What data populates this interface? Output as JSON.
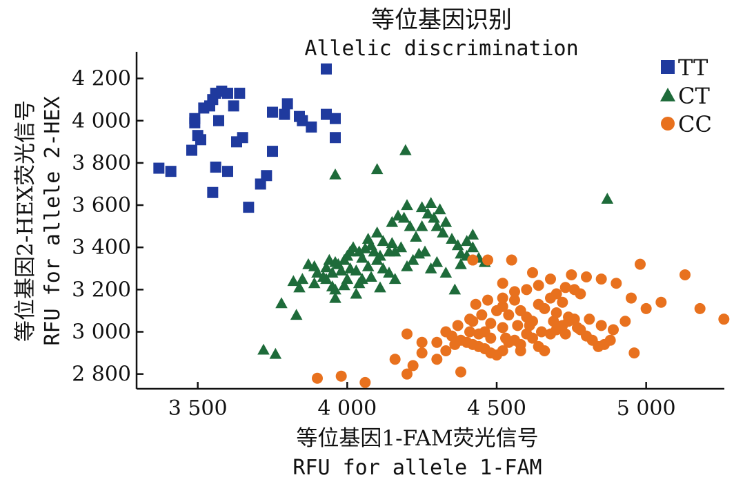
{
  "chart_data": {
    "type": "scatter",
    "title": "等位基因识别",
    "subtitle": "Allelic discrimination",
    "xlabel": "等位基因1-FAM荧光信号",
    "xlabel_en": "RFU for allele 1-FAM",
    "ylabel": "等位基因2-HEX荧光信号",
    "ylabel_en": "RFU for allele 2-HEX",
    "xlim": [
      3300,
      5250
    ],
    "ylim": [
      2740,
      4310
    ],
    "x_ticks": [
      3500,
      4000,
      4500,
      5000
    ],
    "x_tick_labels": [
      "3 500",
      "4 000",
      "4 500",
      "5 000"
    ],
    "y_ticks": [
      2800,
      3000,
      3200,
      3400,
      3600,
      3800,
      4000,
      4200
    ],
    "y_tick_labels": [
      "2 800",
      "3 000",
      "3 200",
      "3 400",
      "3 600",
      "3 800",
      "4 000",
      "4 200"
    ],
    "grid": false,
    "legend_position": "top-right",
    "series": [
      {
        "name": "TT",
        "marker": "square",
        "color": "#1f3a9e",
        "points": [
          [
            3930,
            4245
          ],
          [
            3370,
            3775
          ],
          [
            3410,
            3760
          ],
          [
            3480,
            3860
          ],
          [
            3490,
            3990
          ],
          [
            3490,
            4010
          ],
          [
            3500,
            3930
          ],
          [
            3510,
            3910
          ],
          [
            3520,
            4060
          ],
          [
            3540,
            4070
          ],
          [
            3550,
            4100
          ],
          [
            3560,
            4130
          ],
          [
            3580,
            4140
          ],
          [
            3600,
            4130
          ],
          [
            3620,
            4070
          ],
          [
            3640,
            4130
          ],
          [
            3570,
            4000
          ],
          [
            3560,
            3780
          ],
          [
            3600,
            3760
          ],
          [
            3630,
            3900
          ],
          [
            3650,
            3920
          ],
          [
            3550,
            3660
          ],
          [
            3710,
            3700
          ],
          [
            3730,
            3740
          ],
          [
            3750,
            3855
          ],
          [
            3750,
            4040
          ],
          [
            3790,
            4030
          ],
          [
            3800,
            4080
          ],
          [
            3840,
            4020
          ],
          [
            3850,
            4000
          ],
          [
            3880,
            3970
          ],
          [
            3930,
            4030
          ],
          [
            3960,
            4010
          ],
          [
            3960,
            3920
          ],
          [
            3670,
            3590
          ]
        ]
      },
      {
        "name": "CT",
        "marker": "triangle",
        "color": "#1e6b3a",
        "points": [
          [
            4195,
            3860
          ],
          [
            4100,
            3770
          ],
          [
            3960,
            3745
          ],
          [
            4870,
            3630
          ],
          [
            3720,
            2915
          ],
          [
            3760,
            2895
          ],
          [
            3780,
            3135
          ],
          [
            3830,
            3080
          ],
          [
            3840,
            3210
          ],
          [
            3890,
            3230
          ],
          [
            3920,
            3260
          ],
          [
            3950,
            3215
          ],
          [
            3960,
            3160
          ],
          [
            3890,
            3310
          ],
          [
            3930,
            3305
          ],
          [
            3950,
            3280
          ],
          [
            3970,
            3320
          ],
          [
            3990,
            3340
          ],
          [
            4000,
            3360
          ],
          [
            4010,
            3300
          ],
          [
            4030,
            3290
          ],
          [
            4050,
            3350
          ],
          [
            4060,
            3395
          ],
          [
            4080,
            3410
          ],
          [
            4020,
            3400
          ],
          [
            4040,
            3380
          ],
          [
            4070,
            3440
          ],
          [
            4100,
            3470
          ],
          [
            4120,
            3430
          ],
          [
            4140,
            3380
          ],
          [
            4150,
            3420
          ],
          [
            4160,
            3380
          ],
          [
            4180,
            3400
          ],
          [
            4150,
            3520
          ],
          [
            4170,
            3550
          ],
          [
            4190,
            3540
          ],
          [
            4210,
            3500
          ],
          [
            4230,
            3450
          ],
          [
            4250,
            3500
          ],
          [
            4270,
            3560
          ],
          [
            4290,
            3540
          ],
          [
            4310,
            3580
          ],
          [
            4330,
            3520
          ],
          [
            4200,
            3600
          ],
          [
            4250,
            3590
          ],
          [
            4280,
            3610
          ],
          [
            4300,
            3500
          ],
          [
            4320,
            3470
          ],
          [
            4350,
            3440
          ],
          [
            4370,
            3410
          ],
          [
            4400,
            3360
          ],
          [
            4420,
            3400
          ],
          [
            4440,
            3350
          ],
          [
            4460,
            3330
          ],
          [
            4100,
            3340
          ],
          [
            4120,
            3300
          ],
          [
            4080,
            3260
          ],
          [
            4040,
            3230
          ],
          [
            3990,
            3220
          ],
          [
            3960,
            3200
          ],
          [
            3930,
            3250
          ],
          [
            3900,
            3280
          ],
          [
            3870,
            3320
          ],
          [
            3850,
            3250
          ],
          [
            3820,
            3240
          ],
          [
            4110,
            3210
          ],
          [
            4140,
            3280
          ],
          [
            4160,
            3250
          ],
          [
            4200,
            3310
          ],
          [
            4220,
            3340
          ],
          [
            4240,
            3370
          ],
          [
            4260,
            3380
          ],
          [
            4280,
            3300
          ],
          [
            4300,
            3330
          ],
          [
            4330,
            3280
          ],
          [
            4360,
            3200
          ],
          [
            4380,
            3320
          ],
          [
            4400,
            3430
          ],
          [
            4420,
            3460
          ],
          [
            4380,
            3370
          ],
          [
            4070,
            3310
          ],
          [
            4050,
            3250
          ],
          [
            4030,
            3180
          ],
          [
            4000,
            3250
          ],
          [
            3980,
            3290
          ],
          [
            3960,
            3330
          ],
          [
            3940,
            3340
          ],
          [
            4010,
            3380
          ],
          [
            4090,
            3380
          ],
          [
            4110,
            3360
          ]
        ]
      },
      {
        "name": "CC",
        "marker": "circle",
        "color": "#e8711e",
        "points": [
          [
            4060,
            2760
          ],
          [
            3980,
            2790
          ],
          [
            3900,
            2780
          ],
          [
            4200,
            2800
          ],
          [
            4250,
            2900
          ],
          [
            4160,
            2870
          ],
          [
            4220,
            2840
          ],
          [
            4300,
            2950
          ],
          [
            4330,
            2910
          ],
          [
            4360,
            2940
          ],
          [
            4380,
            2960
          ],
          [
            4400,
            2950
          ],
          [
            4420,
            2940
          ],
          [
            4440,
            2930
          ],
          [
            4460,
            2920
          ],
          [
            4480,
            2900
          ],
          [
            4500,
            2890
          ],
          [
            4520,
            2910
          ],
          [
            4540,
            2950
          ],
          [
            4560,
            2960
          ],
          [
            4580,
            2940
          ],
          [
            4600,
            2990
          ],
          [
            4620,
            2970
          ],
          [
            4640,
            2930
          ],
          [
            4660,
            2910
          ],
          [
            4680,
            2990
          ],
          [
            4700,
            3010
          ],
          [
            4720,
            3030
          ],
          [
            4740,
            3050
          ],
          [
            4760,
            3060
          ],
          [
            4780,
            3010
          ],
          [
            4800,
            2980
          ],
          [
            4820,
            2960
          ],
          [
            4840,
            2930
          ],
          [
            4860,
            2940
          ],
          [
            4880,
            2960
          ],
          [
            4420,
            3050
          ],
          [
            4450,
            3080
          ],
          [
            4480,
            3040
          ],
          [
            4500,
            3100
          ],
          [
            4520,
            3120
          ],
          [
            4540,
            3080
          ],
          [
            4560,
            3150
          ],
          [
            4580,
            3100
          ],
          [
            4600,
            3070
          ],
          [
            4620,
            3050
          ],
          [
            4640,
            3130
          ],
          [
            4660,
            3110
          ],
          [
            4680,
            3160
          ],
          [
            4700,
            3090
          ],
          [
            4720,
            3140
          ],
          [
            4740,
            3070
          ],
          [
            4760,
            3200
          ],
          [
            4780,
            3180
          ],
          [
            4420,
            3340
          ],
          [
            4470,
            3340
          ],
          [
            4550,
            3340
          ],
          [
            4520,
            3230
          ],
          [
            4620,
            3280
          ],
          [
            4680,
            3250
          ],
          [
            4750,
            3270
          ],
          [
            4800,
            3260
          ],
          [
            4850,
            3250
          ],
          [
            4900,
            3230
          ],
          [
            4950,
            3160
          ],
          [
            5000,
            3110
          ],
          [
            5050,
            3140
          ],
          [
            5180,
            3110
          ],
          [
            5260,
            3060
          ],
          [
            5130,
            3270
          ],
          [
            4980,
            3320
          ],
          [
            4380,
            2810
          ],
          [
            4300,
            2870
          ],
          [
            4250,
            2950
          ],
          [
            4200,
            2990
          ],
          [
            4330,
            3000
          ],
          [
            4370,
            3030
          ],
          [
            4410,
            3060
          ],
          [
            4460,
            3000
          ],
          [
            4520,
            3020
          ],
          [
            4570,
            3030
          ],
          [
            4610,
            3030
          ],
          [
            4650,
            3000
          ],
          [
            4690,
            3050
          ],
          [
            4730,
            2990
          ],
          [
            4770,
            3020
          ],
          [
            4810,
            3060
          ],
          [
            4850,
            3030
          ],
          [
            4890,
            3010
          ],
          [
            4930,
            3050
          ],
          [
            4960,
            2900
          ],
          [
            4530,
            2970
          ],
          [
            4580,
            2910
          ],
          [
            4440,
            2990
          ],
          [
            4480,
            2970
          ],
          [
            4350,
            2980
          ],
          [
            4600,
            3200
          ],
          [
            4640,
            3220
          ],
          [
            4560,
            3190
          ],
          [
            4520,
            3160
          ],
          [
            4700,
            3180
          ],
          [
            4730,
            3210
          ],
          [
            4470,
            3150
          ],
          [
            4430,
            3130
          ],
          [
            4410,
            3000
          ]
        ]
      }
    ]
  }
}
